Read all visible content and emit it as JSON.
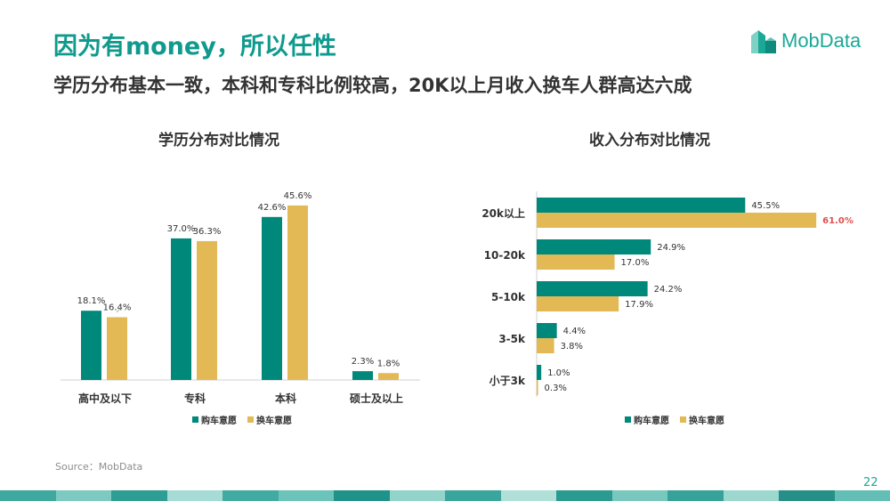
{
  "header": {
    "title": "因为有money，所以任性",
    "subtitle": "学历分布基本一致，本科和专科比例较高，20K以上月收入换车人群高达六成"
  },
  "logo": {
    "text": "MobData"
  },
  "colors": {
    "buy": "#00897b",
    "change": "#e2b955",
    "highlight": "#e05050",
    "accent": "#0f9a8d"
  },
  "chart_data": [
    {
      "type": "bar",
      "title": "学历分布对比情况",
      "categories": [
        "高中及以下",
        "专科",
        "本科",
        "硕士及以上"
      ],
      "series": [
        {
          "name": "购车意愿",
          "values": [
            18.1,
            37.0,
            42.6,
            2.3
          ],
          "labels": [
            "18.1%",
            "37.0%",
            "42.6%",
            "2.3%"
          ]
        },
        {
          "name": "换车意愿",
          "values": [
            16.4,
            36.3,
            45.6,
            1.8
          ],
          "labels": [
            "16.4%",
            "36.3%",
            "45.6%",
            "1.8%"
          ]
        }
      ],
      "legend": "bottom-center"
    },
    {
      "type": "bar",
      "orientation": "horizontal",
      "title": "收入分布对比情况",
      "categories": [
        "20k以上",
        "10-20k",
        "5-10k",
        "3-5k",
        "小于3k"
      ],
      "series": [
        {
          "name": "购车意愿",
          "values": [
            45.5,
            24.9,
            24.2,
            4.4,
            1.0
          ],
          "labels": [
            "45.5%",
            "24.9%",
            "24.2%",
            "4.4%",
            "1.0%"
          ]
        },
        {
          "name": "换车意愿",
          "values": [
            61.0,
            17.0,
            17.9,
            3.8,
            0.3
          ],
          "labels": [
            "61.0%",
            "17.0%",
            "17.9%",
            "3.8%",
            "0.3%"
          ]
        }
      ],
      "highlight": "61.0%",
      "legend": "bottom-center"
    }
  ],
  "footer": {
    "source": "Source：MobData",
    "page": "22"
  }
}
